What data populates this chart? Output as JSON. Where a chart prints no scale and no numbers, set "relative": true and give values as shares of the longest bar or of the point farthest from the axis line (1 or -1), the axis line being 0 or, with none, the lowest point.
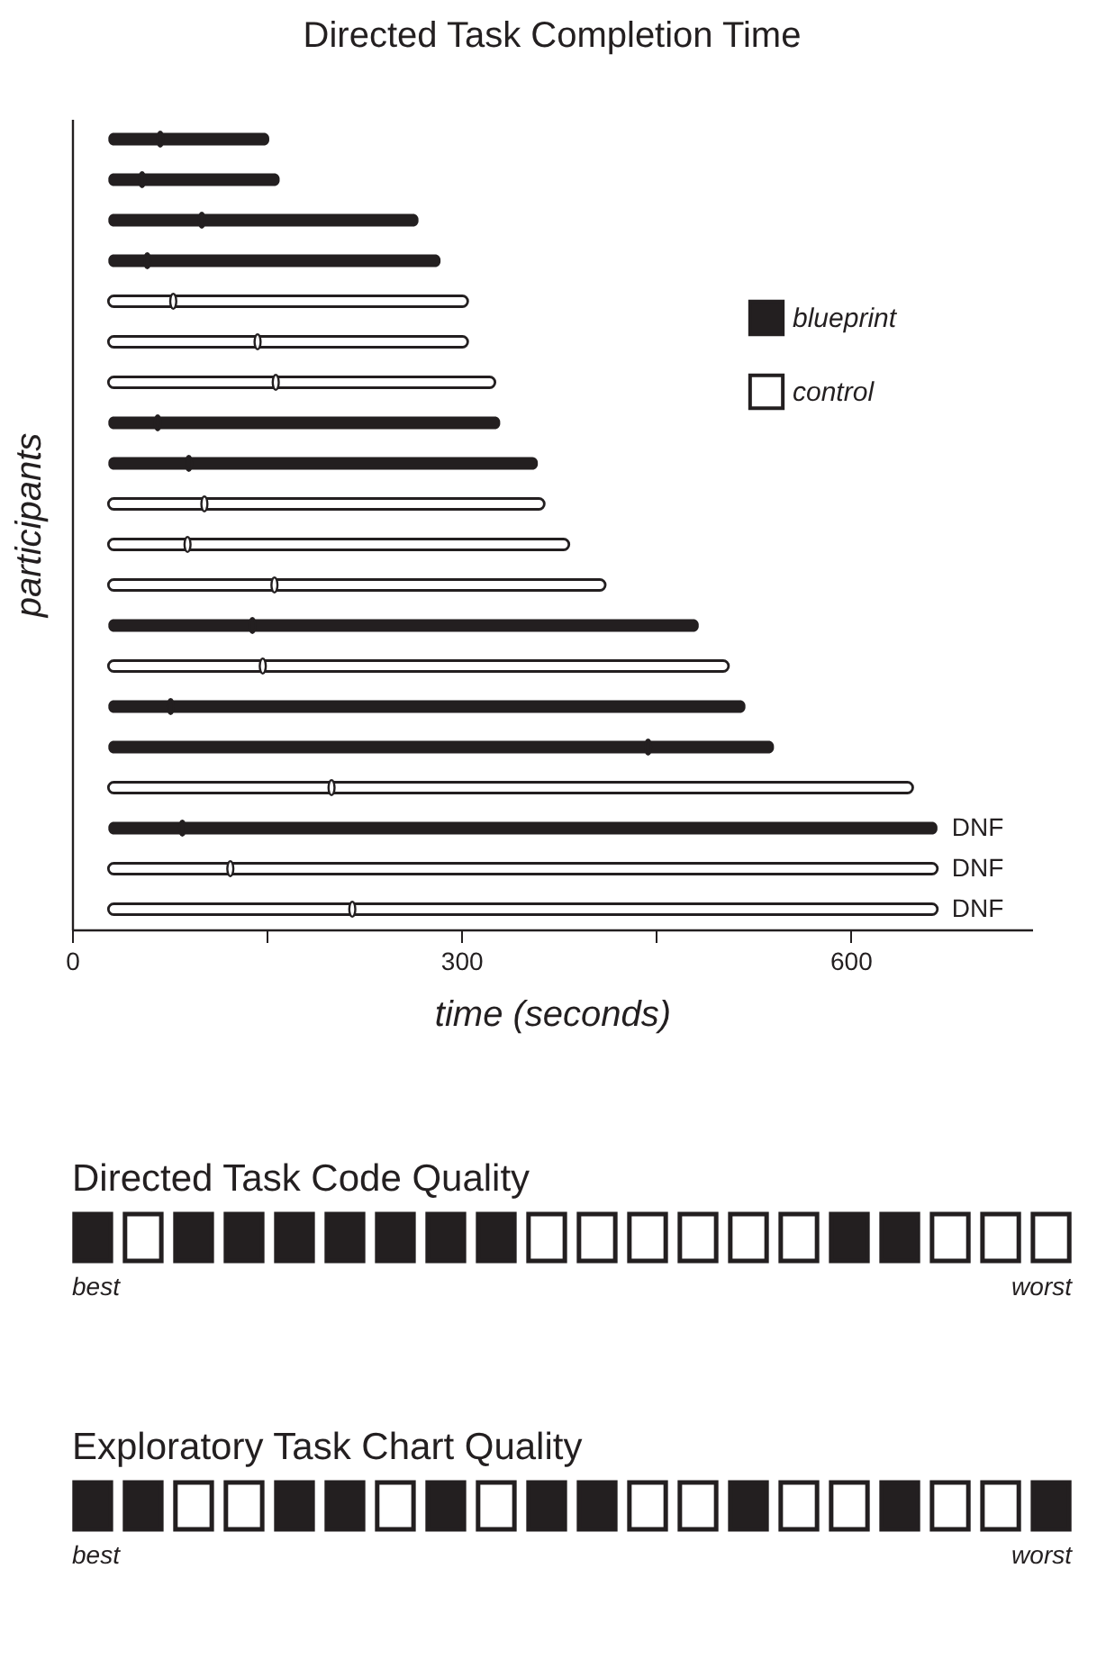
{
  "chart_data": [
    {
      "type": "bar",
      "orientation": "horizontal",
      "title": "Directed Task Completion Time",
      "xlabel": "time (seconds)",
      "ylabel": "participants",
      "categories": [
        null,
        null,
        null,
        null,
        null,
        null,
        null,
        null,
        null,
        null,
        null,
        null,
        null,
        null,
        null,
        null,
        null,
        null,
        null,
        null
      ],
      "series": [
        {
          "name": "blueprint",
          "color": "#231f20",
          "base": [
            28,
            28,
            28,
            28,
            null,
            null,
            null,
            28,
            28,
            null,
            null,
            null,
            28,
            null,
            28,
            28,
            null,
            28,
            null,
            null
          ],
          "values": [
            124,
            132,
            239,
            256,
            null,
            null,
            null,
            302,
            331,
            null,
            null,
            null,
            455,
            null,
            491,
            513,
            null,
            639,
            null,
            null
          ],
          "value_labels": [
            null,
            null,
            null,
            null,
            null,
            null,
            null,
            null,
            null,
            null,
            null,
            null,
            null,
            null,
            null,
            null,
            null,
            "DNF",
            null,
            null
          ]
        },
        {
          "name": "control",
          "color": "#ffffff",
          "base": [
            null,
            null,
            null,
            null,
            28,
            28,
            28,
            null,
            null,
            28,
            28,
            28,
            null,
            28,
            null,
            null,
            28,
            null,
            28,
            28
          ],
          "values": [
            null,
            null,
            null,
            null,
            277,
            277,
            298,
            null,
            null,
            336,
            355,
            383,
            null,
            478,
            null,
            null,
            620,
            null,
            639,
            639
          ],
          "value_labels": [
            null,
            null,
            null,
            null,
            null,
            null,
            null,
            null,
            null,
            null,
            null,
            null,
            null,
            null,
            null,
            null,
            null,
            null,
            "DNF",
            "DNF"
          ]
        },
        {
          "type": "scatter",
          "color": "#231f20",
          "values": [
            68,
            54,
            100,
            58,
            null,
            null,
            null,
            66,
            90,
            null,
            null,
            null,
            139,
            null,
            76,
            444,
            null,
            85,
            null,
            null
          ]
        },
        {
          "type": "scatter",
          "color": "#ffffff",
          "values": [
            null,
            null,
            null,
            null,
            78,
            143,
            157,
            null,
            null,
            102,
            89,
            156,
            null,
            147,
            null,
            null,
            200,
            null,
            122,
            216
          ]
        }
      ],
      "marker": "circle",
      "xlim": [
        0,
        740
      ],
      "xticks": [
        0,
        {
          "value": 150,
          "label": null
        },
        300,
        {
          "value": 450,
          "label": null
        },
        600
      ],
      "legend": "top right"
    },
    {
      "type": "bar",
      "relative": true,
      "title": "Directed Task Code Quality",
      "annotations": [
        "best",
        "worst"
      ],
      "categories": [
        null,
        null,
        null,
        null,
        null,
        null,
        null,
        null,
        null,
        null,
        null,
        null,
        null,
        null,
        null,
        null,
        null,
        null,
        null,
        null
      ],
      "values": [
        1,
        1,
        1,
        1,
        1,
        1,
        1,
        1,
        1,
        1,
        1,
        1,
        1,
        1,
        1,
        1,
        1,
        1,
        1,
        1
      ],
      "colors": [
        "#231f20",
        "#ffffff",
        "#231f20",
        "#231f20",
        "#231f20",
        "#231f20",
        "#231f20",
        "#231f20",
        "#231f20",
        "#ffffff",
        "#ffffff",
        "#ffffff",
        "#ffffff",
        "#ffffff",
        "#ffffff",
        "#231f20",
        "#231f20",
        "#ffffff",
        "#ffffff",
        "#ffffff"
      ]
    },
    {
      "type": "bar",
      "relative": true,
      "title": "Exploratory Task Chart Quality",
      "annotations": [
        "best",
        "worst"
      ],
      "categories": [
        null,
        null,
        null,
        null,
        null,
        null,
        null,
        null,
        null,
        null,
        null,
        null,
        null,
        null,
        null,
        null,
        null,
        null,
        null,
        null
      ],
      "values": [
        1,
        1,
        1,
        1,
        1,
        1,
        1,
        1,
        1,
        1,
        1,
        1,
        1,
        1,
        1,
        1,
        1,
        1,
        1,
        1
      ],
      "colors": [
        "#231f20",
        "#231f20",
        "#ffffff",
        "#ffffff",
        "#231f20",
        "#231f20",
        "#ffffff",
        "#231f20",
        "#ffffff",
        "#231f20",
        "#231f20",
        "#ffffff",
        "#ffffff",
        "#231f20",
        "#ffffff",
        "#ffffff",
        "#231f20",
        "#ffffff",
        "#ffffff",
        "#231f20"
      ]
    }
  ]
}
